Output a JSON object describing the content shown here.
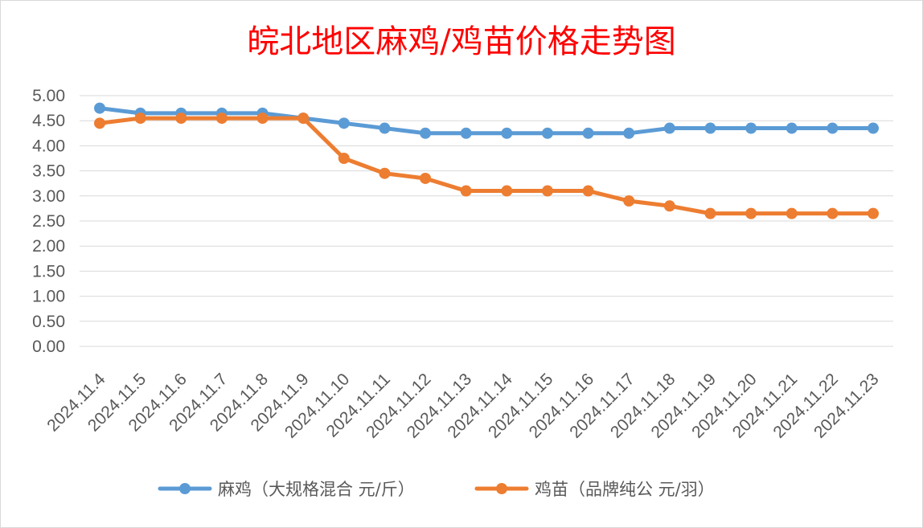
{
  "chart_data": {
    "type": "line",
    "title": "皖北地区麻鸡/鸡苗价格走势图",
    "xlabel": "",
    "ylabel": "",
    "categories": [
      "2024.11.4",
      "2024.11.5",
      "2024.11.6",
      "2024.11.7",
      "2024.11.8",
      "2024.11.9",
      "2024.11.10",
      "2024.11.11",
      "2024.11.12",
      "2024.11.13",
      "2024.11.14",
      "2024.11.15",
      "2024.11.16",
      "2024.11.17",
      "2024.11.18",
      "2024.11.19",
      "2024.11.20",
      "2024.11.21",
      "2024.11.22",
      "2024.11.23"
    ],
    "yticks": [
      "0.00",
      "0.50",
      "1.00",
      "1.50",
      "2.00",
      "2.50",
      "3.00",
      "3.50",
      "4.00",
      "4.50",
      "5.00"
    ],
    "ylim": [
      0,
      5
    ],
    "grid": true,
    "legend_position": "bottom",
    "series": [
      {
        "name": "麻鸡（大规格混合 元/斤）",
        "color": "#5b9bd5",
        "values": [
          4.75,
          4.65,
          4.65,
          4.65,
          4.65,
          4.55,
          4.45,
          4.35,
          4.25,
          4.25,
          4.25,
          4.25,
          4.25,
          4.25,
          4.35,
          4.35,
          4.35,
          4.35,
          4.35,
          4.35
        ]
      },
      {
        "name": "鸡苗（品牌纯公 元/羽）",
        "color": "#ed7d31",
        "values": [
          4.45,
          4.55,
          4.55,
          4.55,
          4.55,
          4.55,
          3.75,
          3.45,
          3.35,
          3.1,
          3.1,
          3.1,
          3.1,
          2.9,
          2.8,
          2.65,
          2.65,
          2.65,
          2.65,
          2.65
        ]
      }
    ]
  }
}
